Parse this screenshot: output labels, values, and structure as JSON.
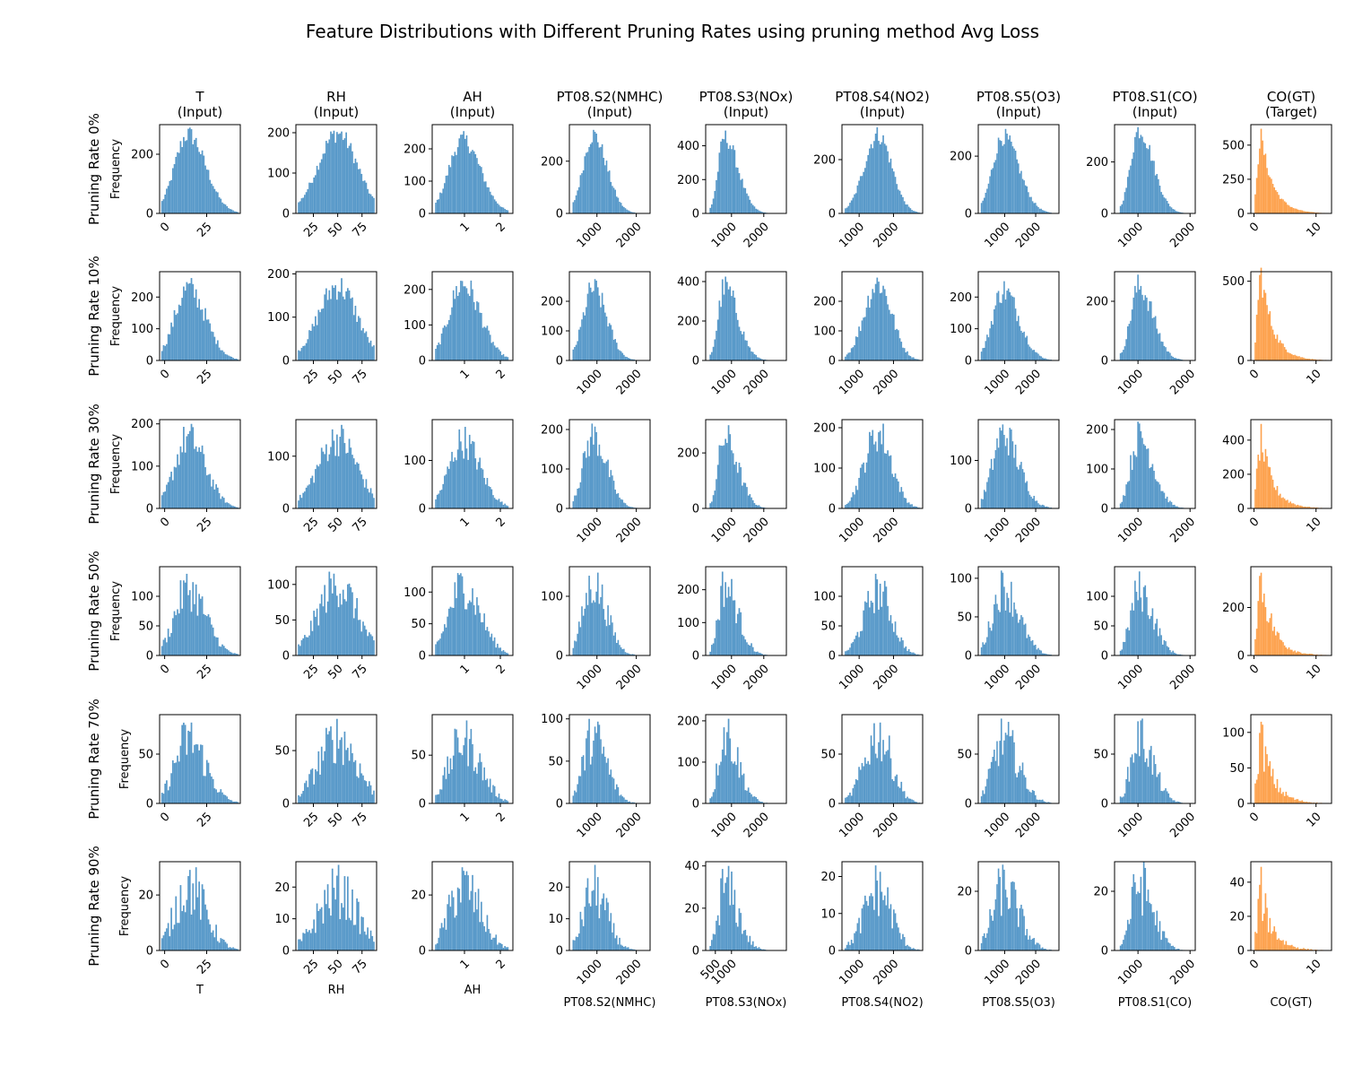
{
  "figure": {
    "title": "Feature Distributions with Different Pruning Rates using pruning method Avg Loss",
    "ylabel": "Frequency",
    "input_tag": "(Input)",
    "target_tag": "(Target)",
    "row_labels": [
      "Pruning Rate 0%",
      "Pruning Rate 10%",
      "Pruning Rate 30%",
      "Pruning Rate 50%",
      "Pruning Rate 70%",
      "Pruning Rate 90%"
    ],
    "colors": {
      "input": "#5899c9",
      "target": "#fda24e"
    }
  },
  "chart_data": {
    "type": "histogram_grid",
    "pruning_rates": [
      0,
      10,
      30,
      50,
      70,
      90
    ],
    "features": [
      {
        "name": "T",
        "role": "Input",
        "xlim": [
          -3,
          45
        ],
        "xticks": [
          0,
          25
        ],
        "xticks_last_row": [
          0,
          25
        ],
        "peak": 14,
        "spread": 8,
        "skew": 1.3,
        "min": -2,
        "max": 44
      },
      {
        "name": "RH",
        "role": "Input",
        "xlim": [
          7,
          90
        ],
        "xticks": [
          25,
          50,
          75
        ],
        "xticks_last_row": [
          25,
          50,
          75
        ],
        "peak": 50,
        "spread": 20,
        "skew": 1.0,
        "min": 9,
        "max": 88
      },
      {
        "name": "AH",
        "role": "Input",
        "xlim": [
          0.1,
          2.35
        ],
        "xticks": [
          1,
          2
        ],
        "xticks_last_row": [
          1,
          2
        ],
        "peak": 0.95,
        "spread": 0.38,
        "skew": 1.3,
        "min": 0.18,
        "max": 2.23
      },
      {
        "name": "PT08.S2(NMHC)",
        "role": "Input",
        "xlim": [
          300,
          2350
        ],
        "xticks": [
          1000,
          2000
        ],
        "xticks_last_row": [
          1000,
          2000
        ],
        "peak": 900,
        "spread": 250,
        "skew": 1.4,
        "min": 380,
        "max": 2220
      },
      {
        "name": "PT08.S3(NOx)",
        "role": "Input",
        "xlim": [
          200,
          2700
        ],
        "xticks": [
          1000,
          2000
        ],
        "xticks_last_row": [
          500,
          1000
        ],
        "peak": 780,
        "spread": 190,
        "skew": 2.2,
        "min": 320,
        "max": 2680
      },
      {
        "name": "PT08.S4(NO2)",
        "role": "Input",
        "xlim": [
          500,
          2850
        ],
        "xticks": [
          1000,
          2000
        ],
        "xticks_last_row": [
          1000,
          2000
        ],
        "peak": 1550,
        "spread": 400,
        "skew": 1.0,
        "min": 580,
        "max": 2780
      },
      {
        "name": "PT08.S5(O3)",
        "role": "Input",
        "xlim": [
          150,
          2750
        ],
        "xticks": [
          1000,
          2000
        ],
        "xticks_last_row": [
          1000,
          2000
        ],
        "peak": 950,
        "spread": 340,
        "skew": 1.5,
        "min": 230,
        "max": 2520
      },
      {
        "name": "PT08.S1(CO)",
        "role": "Input",
        "xlim": [
          550,
          2100
        ],
        "xticks": [
          1000,
          2000
        ],
        "xticks_last_row": [
          1000,
          2000
        ],
        "peak": 1020,
        "spread": 160,
        "skew": 1.7,
        "min": 650,
        "max": 2050
      },
      {
        "name": "CO(GT)",
        "role": "Target",
        "xlim": [
          -0.5,
          12.5
        ],
        "xticks": [
          0,
          10
        ],
        "xticks_last_row": [
          0,
          10
        ],
        "peak": 1.1,
        "spread": 0.9,
        "skew": 2.4,
        "min": 0.1,
        "max": 11.9
      }
    ],
    "ylim": [
      [
        300,
        220,
        275,
        340,
        525,
        330,
        310,
        345,
        650
      ],
      [
        280,
        205,
        250,
        300,
        450,
        300,
        280,
        300,
        560
      ],
      [
        210,
        170,
        185,
        225,
        320,
        220,
        185,
        225,
        520
      ],
      [
        150,
        125,
        140,
        150,
        270,
        150,
        115,
        150,
        370
      ],
      [
        90,
        84,
        92,
        105,
        215,
        90,
        90,
        90,
        125
      ],
      [
        32,
        28,
        32,
        28,
        42,
        24,
        30,
        30,
        52
      ]
    ],
    "yticks": [
      [
        [
          0,
          200
        ],
        [
          0,
          100,
          200
        ],
        [
          0,
          100,
          200
        ],
        [
          0,
          200
        ],
        [
          0,
          200,
          400
        ],
        [
          0,
          200
        ],
        [
          0,
          200
        ],
        [
          0,
          200
        ],
        [
          0,
          250,
          500
        ]
      ],
      [
        [
          0,
          100,
          200
        ],
        [
          0,
          100,
          200
        ],
        [
          0,
          100,
          200
        ],
        [
          0,
          100,
          200
        ],
        [
          0,
          200,
          400
        ],
        [
          0,
          100,
          200
        ],
        [
          0,
          100,
          200
        ],
        [
          0,
          200
        ],
        [
          0,
          500
        ]
      ],
      [
        [
          0,
          100,
          200
        ],
        [
          0,
          100
        ],
        [
          0,
          100
        ],
        [
          0,
          100,
          200
        ],
        [
          0,
          200
        ],
        [
          0,
          100,
          200
        ],
        [
          0,
          100
        ],
        [
          0,
          100,
          200
        ],
        [
          0,
          200,
          400
        ]
      ],
      [
        [
          0,
          50,
          100
        ],
        [
          0,
          50,
          100
        ],
        [
          0,
          50,
          100
        ],
        [
          0,
          100
        ],
        [
          0,
          100,
          200
        ],
        [
          0,
          50,
          100
        ],
        [
          0,
          50,
          100
        ],
        [
          0,
          50,
          100
        ],
        [
          0,
          200
        ]
      ],
      [
        [
          0,
          50
        ],
        [
          0,
          50
        ],
        [
          0,
          50
        ],
        [
          0,
          50,
          100
        ],
        [
          0,
          100,
          200
        ],
        [
          0,
          50
        ],
        [
          0,
          50
        ],
        [
          0,
          50
        ],
        [
          0,
          50,
          100
        ]
      ],
      [
        [
          0,
          20
        ],
        [
          0,
          10,
          20
        ],
        [
          0,
          20
        ],
        [
          0,
          10,
          20
        ],
        [
          0,
          20,
          40
        ],
        [
          0,
          10,
          20
        ],
        [
          0,
          20
        ],
        [
          0,
          20
        ],
        [
          0,
          20,
          40
        ]
      ]
    ],
    "row_peaks": [
      [
        290,
        205,
        255,
        320,
        490,
        320,
        295,
        335,
        620
      ],
      [
        260,
        190,
        225,
        275,
        425,
        280,
        250,
        290,
        585
      ],
      [
        200,
        160,
        170,
        215,
        300,
        210,
        175,
        220,
        495
      ],
      [
        138,
        118,
        130,
        140,
        255,
        138,
        110,
        142,
        345
      ],
      [
        82,
        80,
        86,
        100,
        205,
        82,
        86,
        86,
        115
      ],
      [
        30,
        27,
        30,
        27,
        40,
        23,
        29,
        30,
        49
      ]
    ],
    "bins": 50
  }
}
